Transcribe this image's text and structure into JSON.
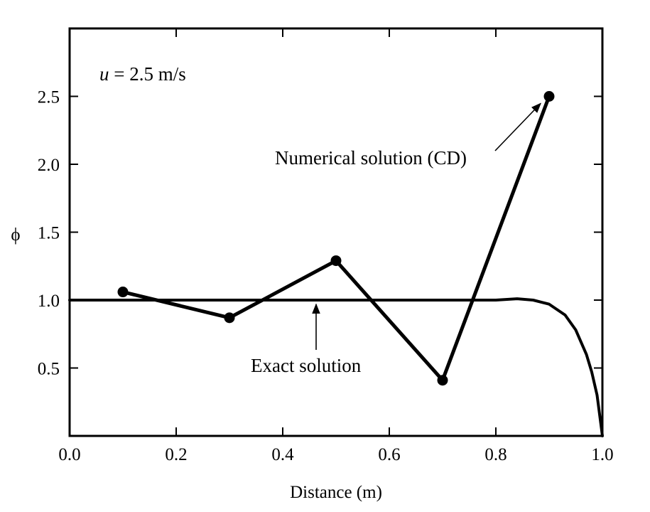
{
  "chart_data": {
    "type": "line",
    "xlabel": "Distance (m)",
    "ylabel": "ϕ",
    "xlim": [
      0.0,
      1.0
    ],
    "ylim": [
      0.0,
      3.0
    ],
    "grid": false,
    "x_ticks": [
      0.0,
      0.2,
      0.4,
      0.6,
      0.8,
      1.0
    ],
    "x_tick_labels": [
      "0.0",
      "0.2",
      "0.4",
      "0.6",
      "0.8",
      "1.0"
    ],
    "y_ticks": [
      0.5,
      1.0,
      1.5,
      2.0,
      2.5
    ],
    "y_tick_labels": [
      "0.5",
      "1.0",
      "1.5",
      "2.0",
      "2.5"
    ],
    "parameter_label": {
      "symbol": "u",
      "text": " = 2.5 m/s"
    },
    "series": [
      {
        "name": "Numerical solution (CD)",
        "style": "line-with-markers",
        "x": [
          0.1,
          0.3,
          0.5,
          0.7,
          0.9
        ],
        "y": [
          1.06,
          0.87,
          1.29,
          0.41,
          2.5
        ]
      },
      {
        "name": "Exact solution",
        "style": "line",
        "x": [
          0.0,
          0.1,
          0.2,
          0.3,
          0.4,
          0.5,
          0.6,
          0.7,
          0.75,
          0.8,
          0.84,
          0.87,
          0.9,
          0.93,
          0.95,
          0.97,
          0.98,
          0.99,
          1.0
        ],
        "y": [
          1.0,
          1.0,
          1.0,
          1.0,
          1.0,
          1.0,
          1.0,
          1.0,
          1.0,
          1.0,
          1.01,
          1.0,
          0.97,
          0.89,
          0.78,
          0.6,
          0.47,
          0.3,
          0.0
        ]
      }
    ],
    "annotations": [
      {
        "text": "Numerical solution (CD)",
        "points_to": [
          0.9,
          2.5
        ]
      },
      {
        "text": "Exact solution",
        "points_to": [
          0.46,
          1.0
        ]
      }
    ]
  }
}
